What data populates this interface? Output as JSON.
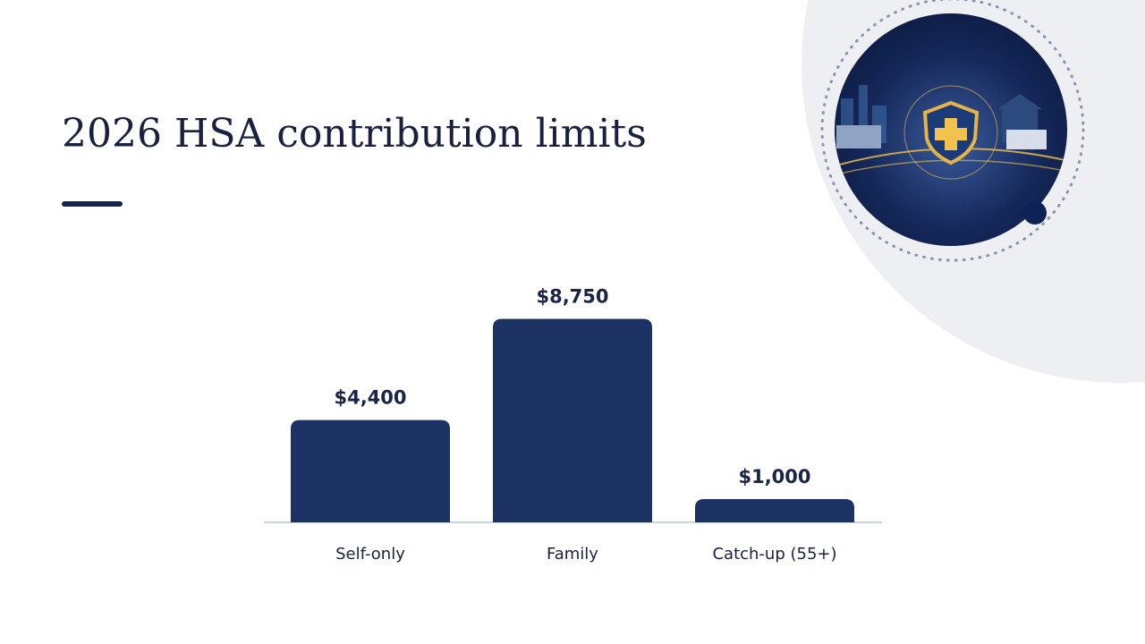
{
  "chart_data": {
    "type": "bar",
    "title": "2026 HSA contribution limits",
    "categories": [
      "Self-only",
      "Family",
      "Catch-up (55+)"
    ],
    "values": [
      4400,
      8750,
      1000
    ],
    "value_labels": [
      "$4,400",
      "$8,750",
      "$1,000"
    ],
    "color": "#1c3263",
    "ylim": [
      0,
      10000
    ]
  }
}
